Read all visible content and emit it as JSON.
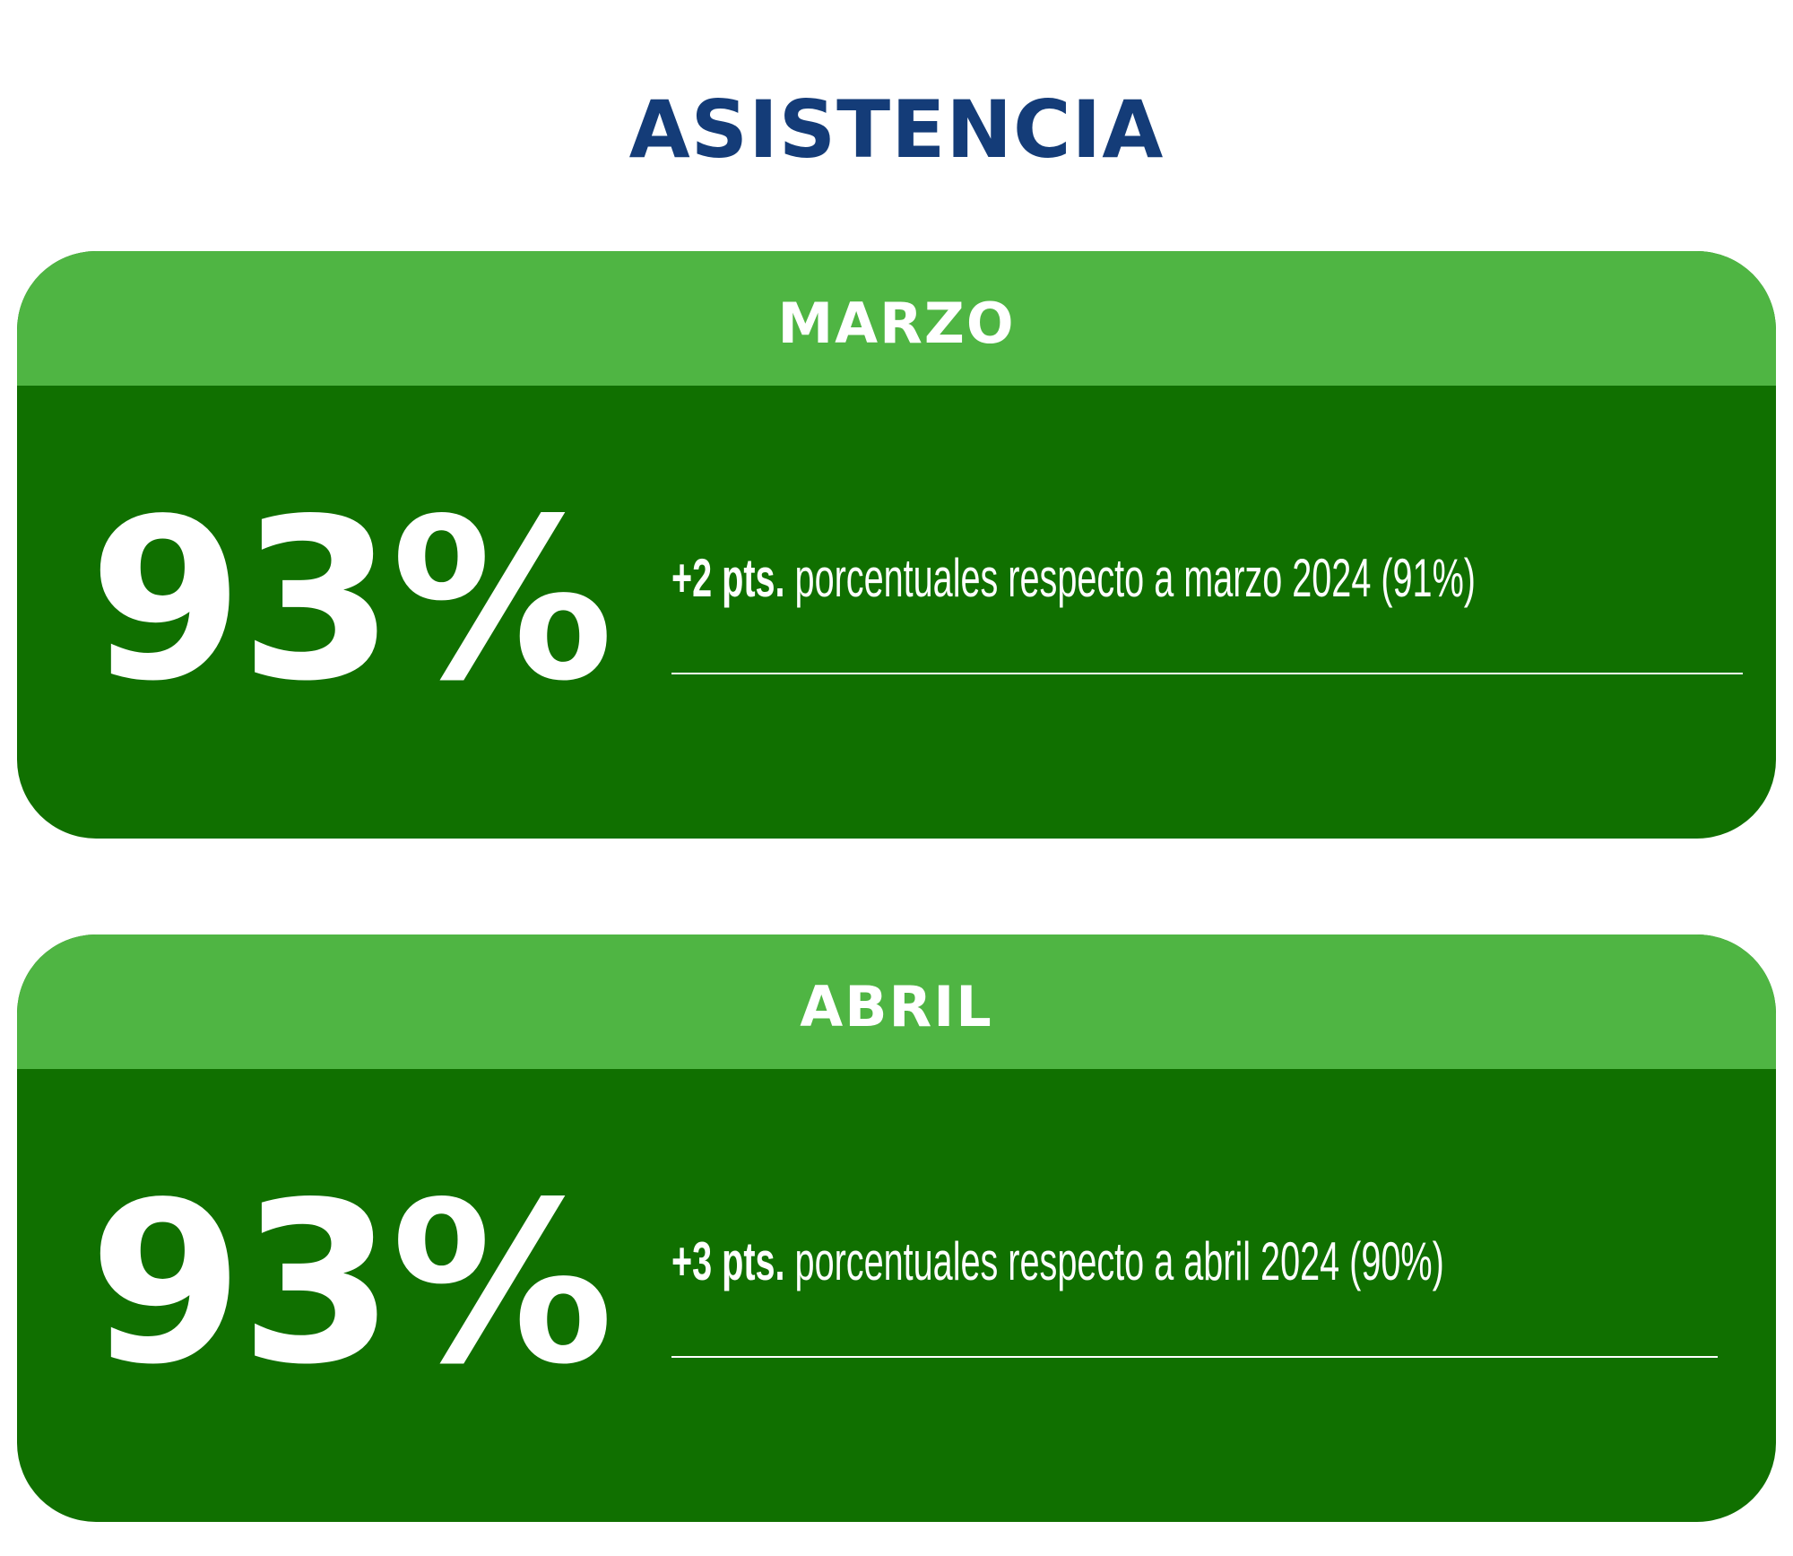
{
  "title": "ASISTENCIA",
  "colors": {
    "title": "#143c78",
    "header_green": "#4fb543",
    "body_green": "#107000",
    "text": "#ffffff"
  },
  "cards": [
    {
      "month": "MARZO",
      "value": "93%",
      "change_bold": "+2 pts.",
      "change_text": " porcentuales respecto a marzo 2024 (91%)"
    },
    {
      "month": "ABRIL",
      "value": "93%",
      "change_bold": "+3 pts.",
      "change_text": " porcentuales respecto a abril 2024 (90%)"
    }
  ]
}
